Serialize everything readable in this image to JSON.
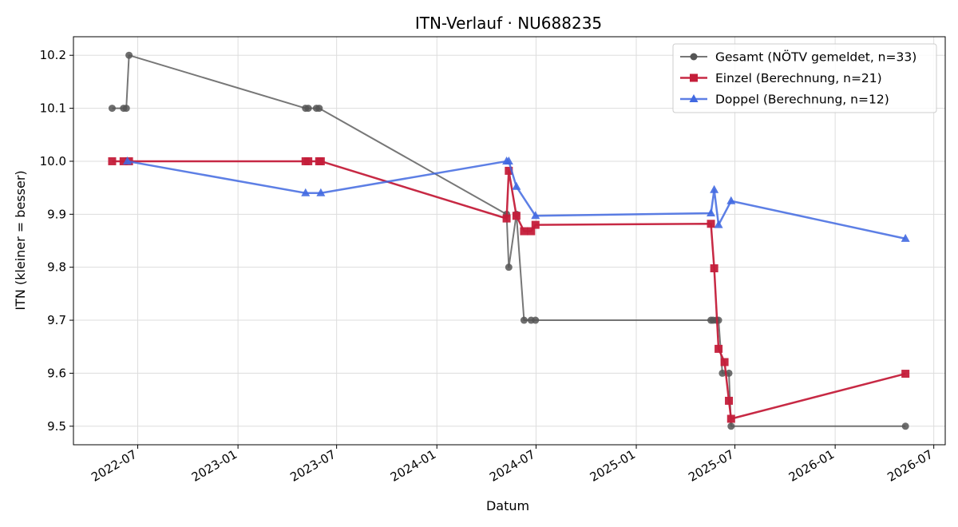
{
  "chart_data": {
    "type": "line",
    "title": "ITN-Verlauf · NU688235",
    "xlabel": "Datum",
    "ylabel": "ITN  (kleiner = besser)",
    "grid": true,
    "legend_position": "top-right",
    "xlim": [
      "2022-03-05",
      "2026-07-22"
    ],
    "ylim": [
      9.465,
      10.235
    ],
    "x_ticks": [
      "2022-07",
      "2023-01",
      "2023-07",
      "2024-01",
      "2024-07",
      "2025-01",
      "2025-07",
      "2026-01",
      "2026-07"
    ],
    "y_ticks": [
      "9.5",
      "9.6",
      "9.7",
      "9.8",
      "9.9",
      "10.0",
      "10.1",
      "10.2"
    ],
    "series": [
      {
        "name": "Gesamt (NÖTV gemeldet, n=33)",
        "color": "#555555",
        "marker": "circle",
        "points": [
          [
            "2022-05-15",
            10.1
          ],
          [
            "2022-06-05",
            10.1
          ],
          [
            "2022-06-10",
            10.1
          ],
          [
            "2022-06-15",
            10.2
          ],
          [
            "2023-05-05",
            10.1
          ],
          [
            "2023-05-10",
            10.1
          ],
          [
            "2023-05-25",
            10.1
          ],
          [
            "2023-05-30",
            10.1
          ],
          [
            "2024-05-08",
            9.9
          ],
          [
            "2024-05-12",
            9.8
          ],
          [
            "2024-05-26",
            9.9
          ],
          [
            "2024-06-09",
            9.7
          ],
          [
            "2024-06-22",
            9.7
          ],
          [
            "2024-06-30",
            9.7
          ],
          [
            "2025-05-18",
            9.7
          ],
          [
            "2025-05-22",
            9.7
          ],
          [
            "2025-05-28",
            9.7
          ],
          [
            "2025-06-01",
            9.7
          ],
          [
            "2025-06-08",
            9.6
          ],
          [
            "2025-06-20",
            9.6
          ],
          [
            "2025-06-24",
            9.5
          ],
          [
            "2026-05-10",
            9.5
          ]
        ]
      },
      {
        "name": "Einzel (Berechnung, n=21)",
        "color": "#c41e3a",
        "marker": "square",
        "points": [
          [
            "2022-05-15",
            10.0
          ],
          [
            "2022-06-05",
            10.0
          ],
          [
            "2022-06-15",
            10.0
          ],
          [
            "2023-05-05",
            10.0
          ],
          [
            "2023-05-10",
            10.0
          ],
          [
            "2023-05-30",
            10.0
          ],
          [
            "2023-06-02",
            10.0
          ],
          [
            "2024-05-08",
            9.892
          ],
          [
            "2024-05-12",
            9.982
          ],
          [
            "2024-05-26",
            9.897
          ],
          [
            "2024-06-09",
            9.868
          ],
          [
            "2024-06-22",
            9.868
          ],
          [
            "2024-06-30",
            9.88
          ],
          [
            "2025-05-18",
            9.882
          ],
          [
            "2025-05-24",
            9.798
          ],
          [
            "2025-06-01",
            9.646
          ],
          [
            "2025-06-12",
            9.621
          ],
          [
            "2025-06-20",
            9.548
          ],
          [
            "2025-06-24",
            9.514
          ],
          [
            "2026-05-10",
            9.599
          ]
        ]
      },
      {
        "name": "Doppel (Berechnung, n=12)",
        "color": "#4169e1",
        "marker": "triangle",
        "points": [
          [
            "2022-06-12",
            10.0
          ],
          [
            "2023-05-05",
            9.94
          ],
          [
            "2023-06-02",
            9.94
          ],
          [
            "2024-05-08",
            10.0
          ],
          [
            "2024-05-12",
            10.0
          ],
          [
            "2024-05-26",
            9.952
          ],
          [
            "2024-06-30",
            9.897
          ],
          [
            "2025-05-18",
            9.902
          ],
          [
            "2025-05-24",
            9.946
          ],
          [
            "2025-06-01",
            9.88
          ],
          [
            "2025-06-24",
            9.925
          ],
          [
            "2026-05-10",
            9.854
          ]
        ]
      }
    ]
  }
}
